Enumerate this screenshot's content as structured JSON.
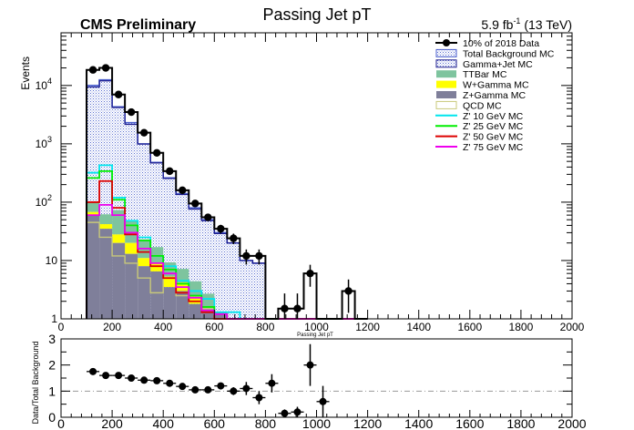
{
  "chart_data": [
    {
      "type": "histogram",
      "title": "Passing Jet pT",
      "header_left": "CMS Preliminary",
      "header_right": {
        "lumi": "5.9 fb",
        "sup": "-1",
        "energy": " (13 TeV)"
      },
      "xlabel": "Passing Jet pT",
      "ylabel": "Events",
      "xlim": [
        0,
        2000
      ],
      "ylim": [
        1,
        80000
      ],
      "yscale": "log",
      "xticks": [
        0,
        200,
        400,
        600,
        800,
        1000,
        1200,
        1400,
        1600,
        1800,
        2000
      ],
      "yticks": [
        {
          "v": 1,
          "label": "1"
        },
        {
          "v": 10,
          "label": "10"
        },
        {
          "v": 100,
          "label": "10",
          "exp": "2"
        },
        {
          "v": 1000,
          "label": "10",
          "exp": "3"
        },
        {
          "v": 10000,
          "label": "10",
          "exp": "4"
        }
      ],
      "bin_edges": [
        100,
        150,
        200,
        250,
        300,
        350,
        400,
        450,
        500,
        550,
        600,
        650,
        700,
        750,
        800,
        850,
        900,
        950,
        1000,
        1050,
        1100,
        1150,
        1200
      ],
      "series": [
        {
          "name": "10% of 2018 Data",
          "kind": "data",
          "values": [
            18500,
            20000,
            7000,
            3500,
            1550,
            700,
            340,
            160,
            95,
            55,
            35,
            24,
            12,
            12,
            0,
            1.5,
            1.5,
            6,
            1,
            0,
            3,
            0
          ]
        },
        {
          "name": "Total Background MC",
          "kind": "total",
          "values": [
            10000,
            12500,
            4300,
            2300,
            1000,
            480,
            260,
            140,
            80,
            50,
            30,
            20,
            10,
            9,
            0,
            1,
            1,
            1,
            1,
            0,
            0,
            0
          ]
        },
        {
          "name": "Gamma+Jet MC",
          "kind": "line",
          "values": [
            9400,
            12000,
            4200,
            2150,
            990,
            470,
            255,
            135,
            76,
            48,
            29,
            20,
            10,
            9,
            0,
            1,
            1,
            1,
            1,
            0,
            0,
            0
          ]
        },
        {
          "name": "TTBar MC",
          "kind": "stack",
          "values": [
            30,
            20,
            45,
            28,
            12,
            8,
            4,
            3,
            2,
            1.3,
            0,
            0,
            0,
            0,
            0,
            0,
            0,
            0,
            0,
            0,
            0,
            0
          ]
        },
        {
          "name": "W+Gamma MC",
          "kind": "stack",
          "values": [
            8,
            7,
            8,
            7,
            3,
            2.5,
            1.8,
            1.2,
            0.6,
            0,
            0,
            0,
            0,
            0,
            0,
            0,
            0,
            0,
            0,
            0,
            0,
            0
          ]
        },
        {
          "name": "Z+Gamma MC",
          "kind": "stack",
          "values": [
            60,
            35,
            20,
            13,
            8,
            6.5,
            3.5,
            3,
            1.8,
            1.4,
            1.3,
            0,
            0,
            0,
            0,
            0,
            0,
            0,
            0,
            0,
            0,
            0
          ]
        },
        {
          "name": "QCD MC",
          "kind": "line",
          "values": [
            45,
            25,
            12,
            9,
            5,
            2.8,
            5,
            2.5,
            2,
            1.5,
            1.3,
            0,
            0,
            0,
            0,
            0,
            0,
            0,
            0,
            0,
            0,
            0
          ]
        },
        {
          "name": "Z' 10 GeV MC",
          "kind": "line",
          "values": [
            320,
            430,
            120,
            48,
            25,
            12,
            8,
            4.5,
            3,
            2.2,
            1.3,
            1.3,
            0,
            0,
            0,
            0,
            0,
            0,
            0,
            0,
            0,
            0
          ]
        },
        {
          "name": "Z' 25 GeV MC",
          "kind": "line",
          "values": [
            260,
            340,
            110,
            40,
            22,
            12,
            7,
            4,
            2.5,
            1.6,
            1.2,
            0,
            0,
            0,
            0,
            0,
            0,
            0,
            0,
            0,
            0,
            0
          ]
        },
        {
          "name": "Z' 50 GeV MC",
          "kind": "line",
          "values": [
            100,
            230,
            80,
            28,
            14,
            8,
            5,
            2.8,
            2,
            1.3,
            0,
            0,
            0,
            0,
            0,
            0,
            0,
            0,
            0,
            0,
            0,
            0
          ]
        },
        {
          "name": "Z' 75 GeV MC",
          "kind": "line",
          "values": [
            60,
            90,
            60,
            30,
            16,
            9,
            6,
            3.5,
            2.3,
            1.4,
            1.2,
            0,
            0,
            0,
            0,
            0,
            0,
            0,
            0,
            0,
            0,
            0
          ]
        }
      ],
      "legend_position": "top-right"
    },
    {
      "type": "scatter",
      "ylabel": "Data/Total Background",
      "xlim": [
        0,
        2000
      ],
      "ylim": [
        0,
        3
      ],
      "reference_line": 1,
      "xticks": [
        0,
        200,
        400,
        600,
        800,
        1000,
        1200,
        1400,
        1600,
        1800,
        2000
      ],
      "yticks": [
        0,
        0.5,
        1,
        1.5,
        2,
        2.5,
        3
      ],
      "ytick_labels": [
        "0",
        "0.5",
        "1",
        "1.5",
        "2",
        "2.5",
        "3"
      ],
      "points": [
        {
          "x": 125,
          "y": 1.75,
          "err": 0.07
        },
        {
          "x": 175,
          "y": 1.6,
          "err": 0.07
        },
        {
          "x": 225,
          "y": 1.6,
          "err": 0.07
        },
        {
          "x": 275,
          "y": 1.5,
          "err": 0.07
        },
        {
          "x": 325,
          "y": 1.42,
          "err": 0.07
        },
        {
          "x": 375,
          "y": 1.4,
          "err": 0.07
        },
        {
          "x": 425,
          "y": 1.3,
          "err": 0.07
        },
        {
          "x": 475,
          "y": 1.18,
          "err": 0.07
        },
        {
          "x": 525,
          "y": 1.05,
          "err": 0.07
        },
        {
          "x": 575,
          "y": 1.05,
          "err": 0.1
        },
        {
          "x": 625,
          "y": 1.2,
          "err": 0.12
        },
        {
          "x": 675,
          "y": 1.0,
          "err": 0.15
        },
        {
          "x": 725,
          "y": 1.1,
          "err": 0.25
        },
        {
          "x": 775,
          "y": 0.75,
          "err": 0.25
        },
        {
          "x": 825,
          "y": 1.3,
          "err": 0.35
        },
        {
          "x": 875,
          "y": 0.15,
          "err": 0.15
        },
        {
          "x": 925,
          "y": 0.2,
          "err": 0.2
        },
        {
          "x": 975,
          "y": 2.0,
          "err": 0.8
        },
        {
          "x": 1025,
          "y": 0.6,
          "err": 0.6
        }
      ]
    }
  ],
  "colors": {
    "data": "#000000",
    "total_fill": "#8ea0d8",
    "total_line": "#4a5ecc",
    "gamma_jet": "#1a1a8c",
    "ttbar": "#7ec49e",
    "wgamma": "#ffff00",
    "zgamma": "#7f7f9a",
    "qcd": "#c8c87a",
    "zp10": "#00e5ee",
    "zp25": "#00ee00",
    "zp50": "#dd0000",
    "zp75": "#ee00ee"
  }
}
